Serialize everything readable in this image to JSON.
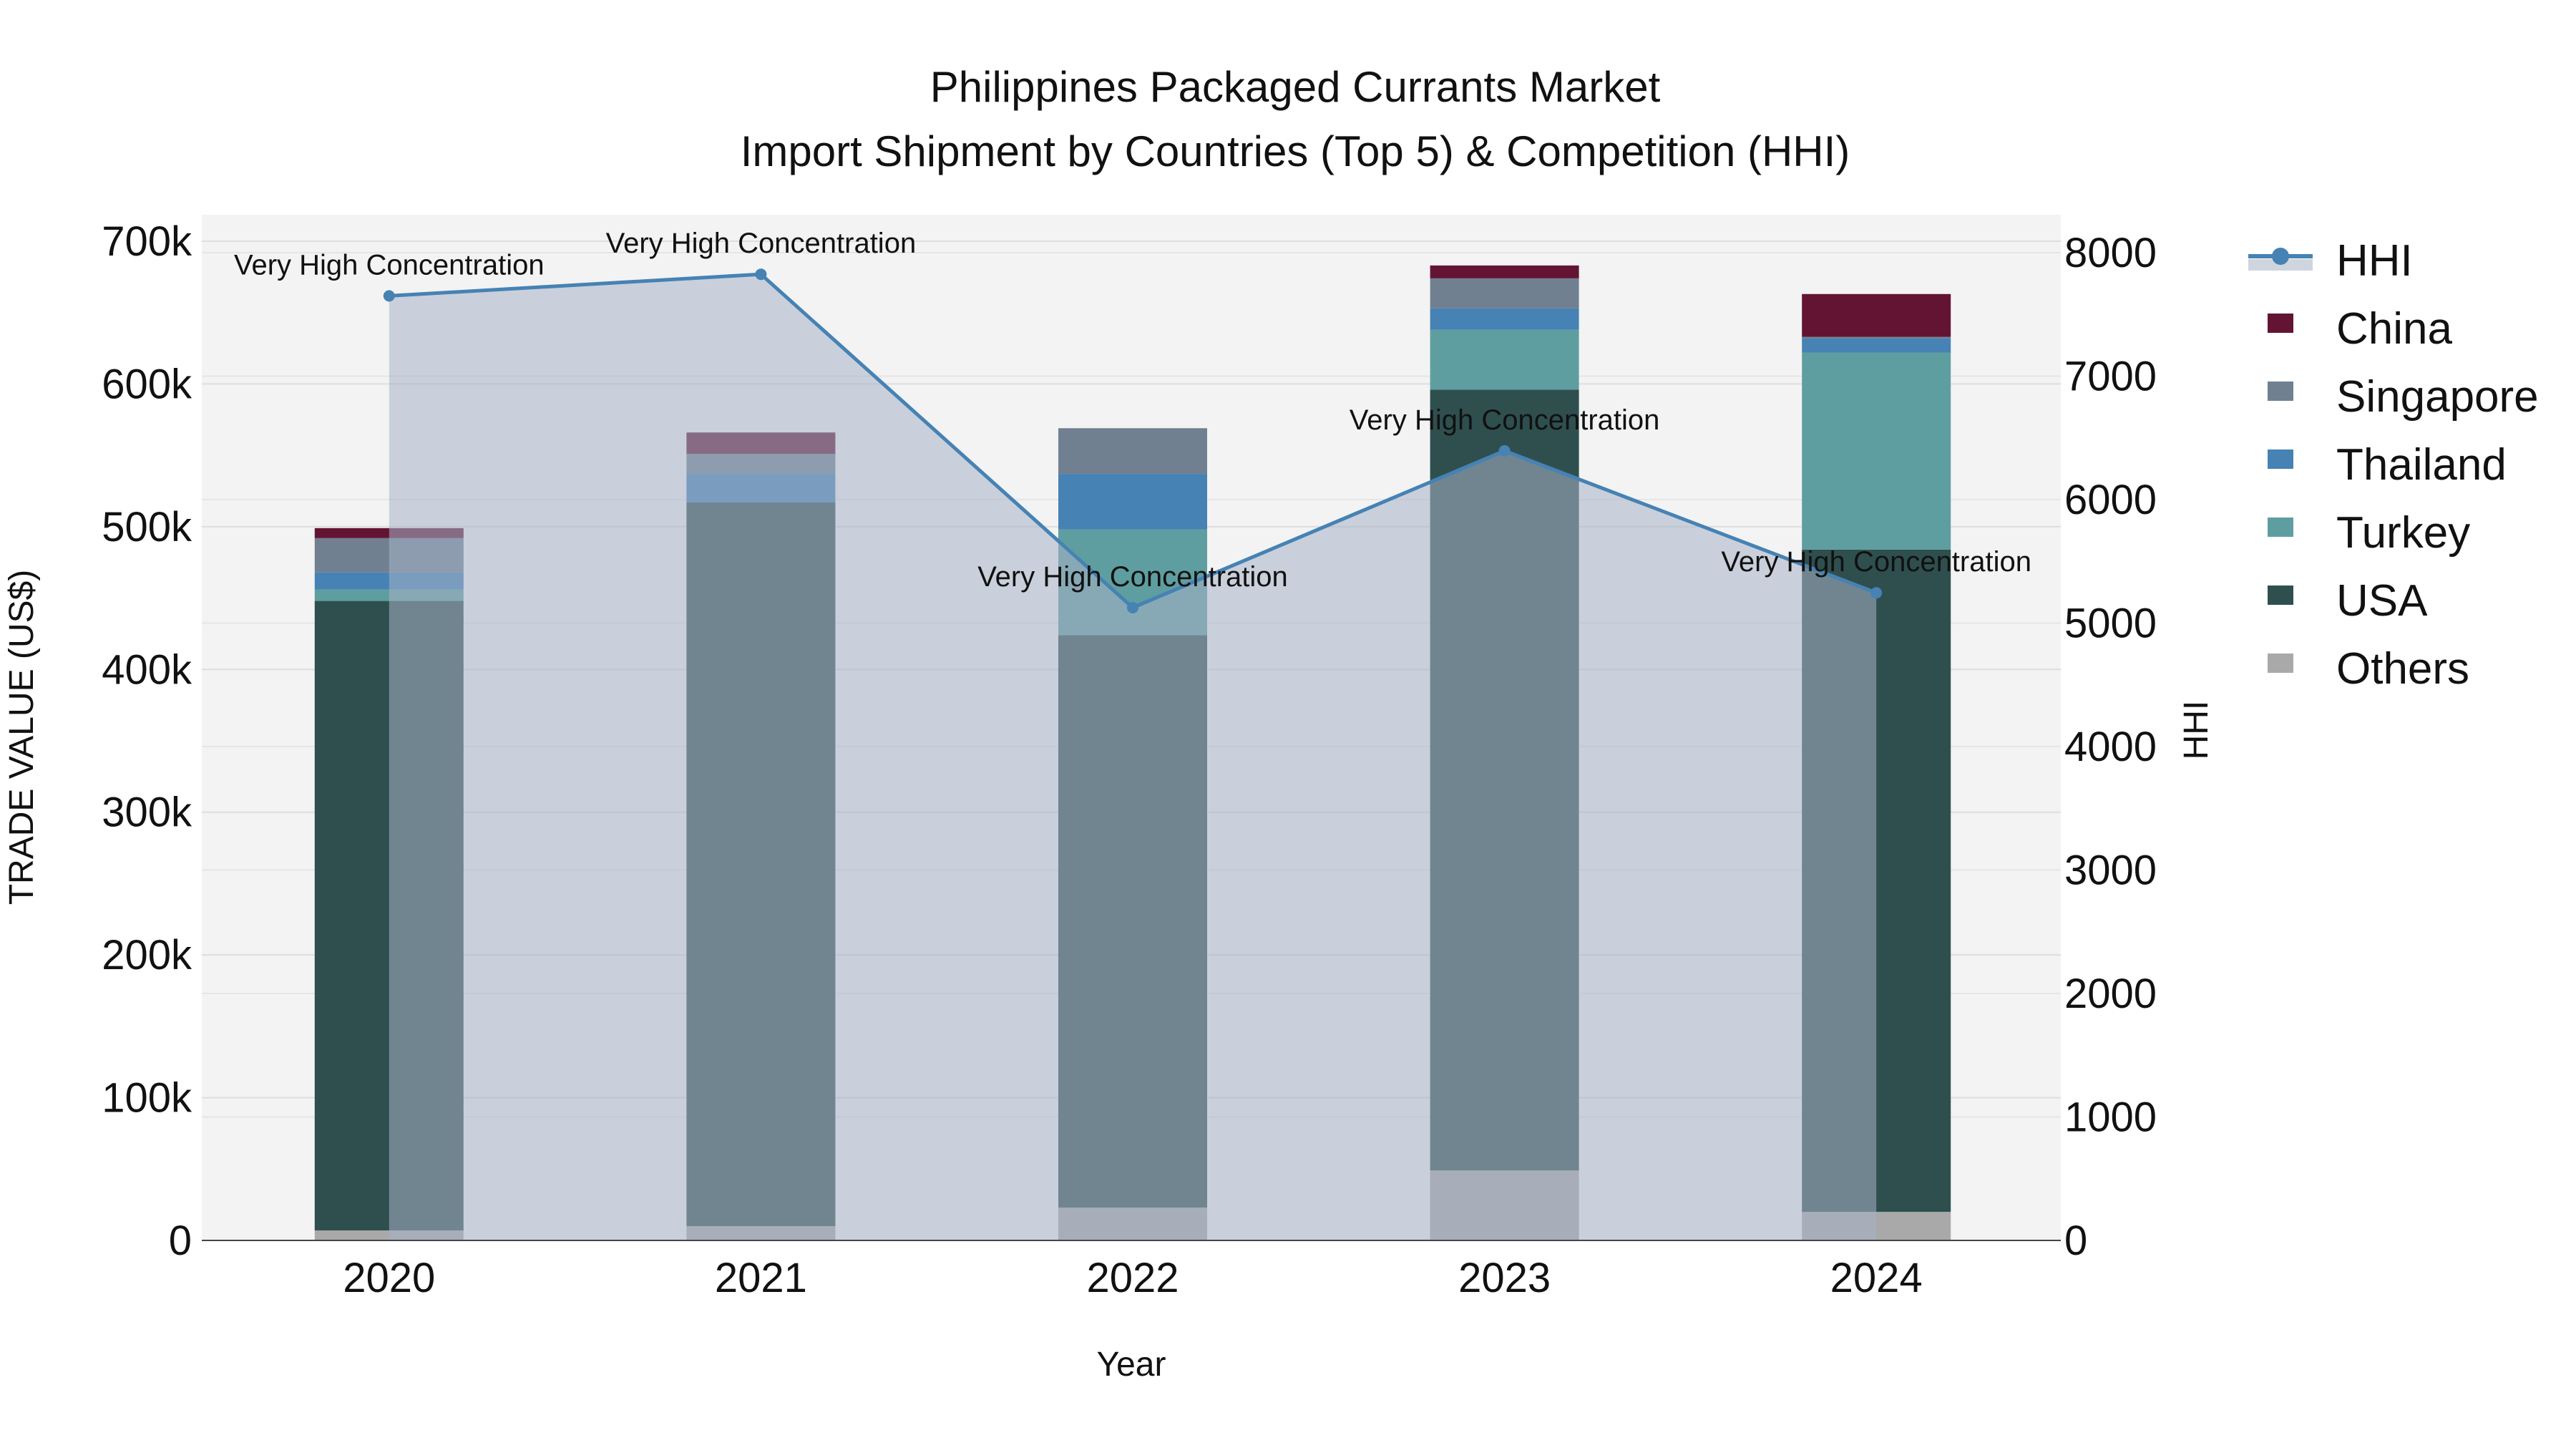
{
  "chart_data": {
    "type": "bar",
    "title": "Philippines Packaged Currants Market",
    "subtitle": "Import Shipment by Countries (Top 5) & Competition (HHI)",
    "xlabel": "Year",
    "ylabel": "TRADE VALUE (US$)",
    "y2label": "HHI",
    "ylim": [
      0,
      700000
    ],
    "y2lim": [
      0,
      8000
    ],
    "yticks": [
      "0",
      "100k",
      "200k",
      "300k",
      "400k",
      "500k",
      "600k",
      "700k"
    ],
    "y2ticks": [
      "0",
      "1000",
      "2000",
      "3000",
      "4000",
      "5000",
      "6000",
      "7000",
      "8000"
    ],
    "categories": [
      "2020",
      "2021",
      "2022",
      "2023",
      "2024"
    ],
    "series": [
      {
        "name": "Others",
        "color": "#A9A9A9",
        "values": [
          7000,
          10000,
          23000,
          49000,
          20000
        ]
      },
      {
        "name": "USA",
        "color": "#2F4F4F",
        "values": [
          441000,
          507000,
          401000,
          547000,
          464000
        ]
      },
      {
        "name": "Turkey",
        "color": "#5F9EA0",
        "values": [
          8000,
          0,
          74000,
          42000,
          138000
        ]
      },
      {
        "name": "Thailand",
        "color": "#4682B4",
        "values": [
          12000,
          20000,
          39000,
          15000,
          10000
        ]
      },
      {
        "name": "Singapore",
        "color": "#708090",
        "values": [
          24000,
          14000,
          32000,
          21000,
          1000
        ]
      },
      {
        "name": "China",
        "color": "#631433",
        "values": [
          7000,
          15000,
          0,
          9000,
          30000
        ]
      }
    ],
    "hhi": {
      "name": "HHI",
      "color": "#4682B4",
      "values": [
        7650,
        7825,
        5125,
        6395,
        5245
      ],
      "annotations": [
        "Very High Concentration",
        "Very High Concentration",
        "Very High Concentration",
        "Very High Concentration",
        "Very High Concentration"
      ]
    },
    "legend": [
      "HHI",
      "China",
      "Singapore",
      "Thailand",
      "Turkey",
      "USA",
      "Others"
    ],
    "legend_position": "right",
    "grid": true
  }
}
